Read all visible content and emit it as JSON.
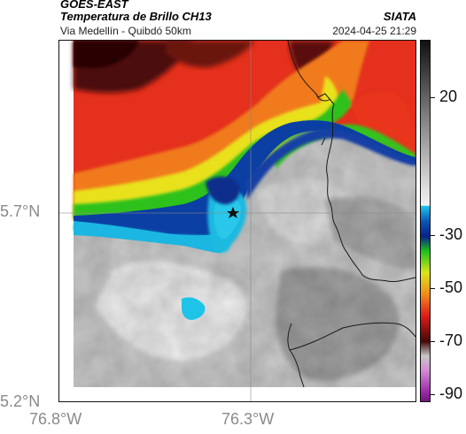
{
  "header": {
    "satellite": "GOES-EAST",
    "product": "Temperatura de Brillo CH13",
    "location": "Via Medellín - Quibdó 50km",
    "organization": "SIATA",
    "timestamp": "2024-04-25 21:29"
  },
  "map": {
    "lat_ticks": [
      "5.7°N",
      "5.2°N"
    ],
    "lon_ticks": [
      "76.8°W",
      "76.3°W"
    ],
    "marker_icon": "star-icon",
    "colors": {
      "cold_cloud_red": "#e8191b",
      "warm_dark": "#3a0a0a",
      "green": "#22c11f",
      "yellow": "#e6e61a",
      "cyan": "#1fc6e8",
      "blue": "#0a3d9e",
      "clear_gray": "#9a9a9a",
      "clear_light": "#e8e8e8",
      "border_line": "#1a1a1a"
    }
  },
  "colorbar": {
    "labels": [
      "20",
      "-30",
      "-50",
      "-70",
      "-90"
    ],
    "label_values": [
      20,
      -30,
      -50,
      -70,
      -90
    ],
    "range": [
      -95,
      40
    ]
  }
}
